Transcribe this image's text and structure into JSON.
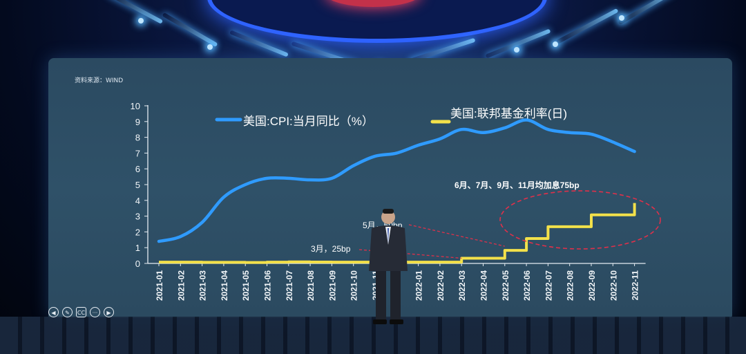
{
  "source_note": "资料来源：WIND",
  "chart_data": {
    "type": "line",
    "ylim": [
      0,
      10
    ],
    "yticks": [
      "0",
      "1",
      "2",
      "3",
      "4",
      "5",
      "6",
      "7",
      "8",
      "9",
      "10"
    ],
    "categories": [
      "2021-01",
      "2021-02",
      "2021-03",
      "2021-04",
      "2021-05",
      "2021-06",
      "2021-07",
      "2021-08",
      "2021-09",
      "2021-10",
      "2021-11",
      "2021-12",
      "2022-01",
      "2022-02",
      "2022-03",
      "2022-04",
      "2022-05",
      "2022-06",
      "2022-07",
      "2022-08",
      "2022-09",
      "2022-10",
      "2022-11"
    ],
    "series": [
      {
        "name": "美国:CPI:当月同比（%）",
        "color": "#2f9bff",
        "values": [
          1.4,
          1.7,
          2.6,
          4.2,
          5.0,
          5.4,
          5.4,
          5.3,
          5.4,
          6.2,
          6.8,
          7.0,
          7.5,
          7.9,
          8.5,
          8.3,
          8.6,
          9.1,
          8.5,
          8.3,
          8.2,
          7.7,
          7.1
        ]
      },
      {
        "name": "美国:联邦基金利率(日)",
        "color": "#f3e14a",
        "step": true,
        "values": [
          0.08,
          0.08,
          0.07,
          0.07,
          0.06,
          0.08,
          0.1,
          0.09,
          0.08,
          0.08,
          0.08,
          0.08,
          0.08,
          0.08,
          0.33,
          0.33,
          0.83,
          1.58,
          2.33,
          2.33,
          3.08,
          3.08,
          3.83
        ]
      }
    ],
    "annotations": [
      {
        "text": "3月，25bp",
        "at_category": "2022-03",
        "value": 0.33
      },
      {
        "text": "5月，50bp",
        "at_category": "2022-05",
        "value": 0.83
      },
      {
        "text": "6月、7月、9月、11月均加息75bp",
        "at_category": "2022-08",
        "value": 2.5
      }
    ]
  },
  "controls": {
    "prev_icon": "◀",
    "pen_icon": "✎",
    "captions_label": "CC",
    "more_icon": "···",
    "next_icon": "▶"
  }
}
